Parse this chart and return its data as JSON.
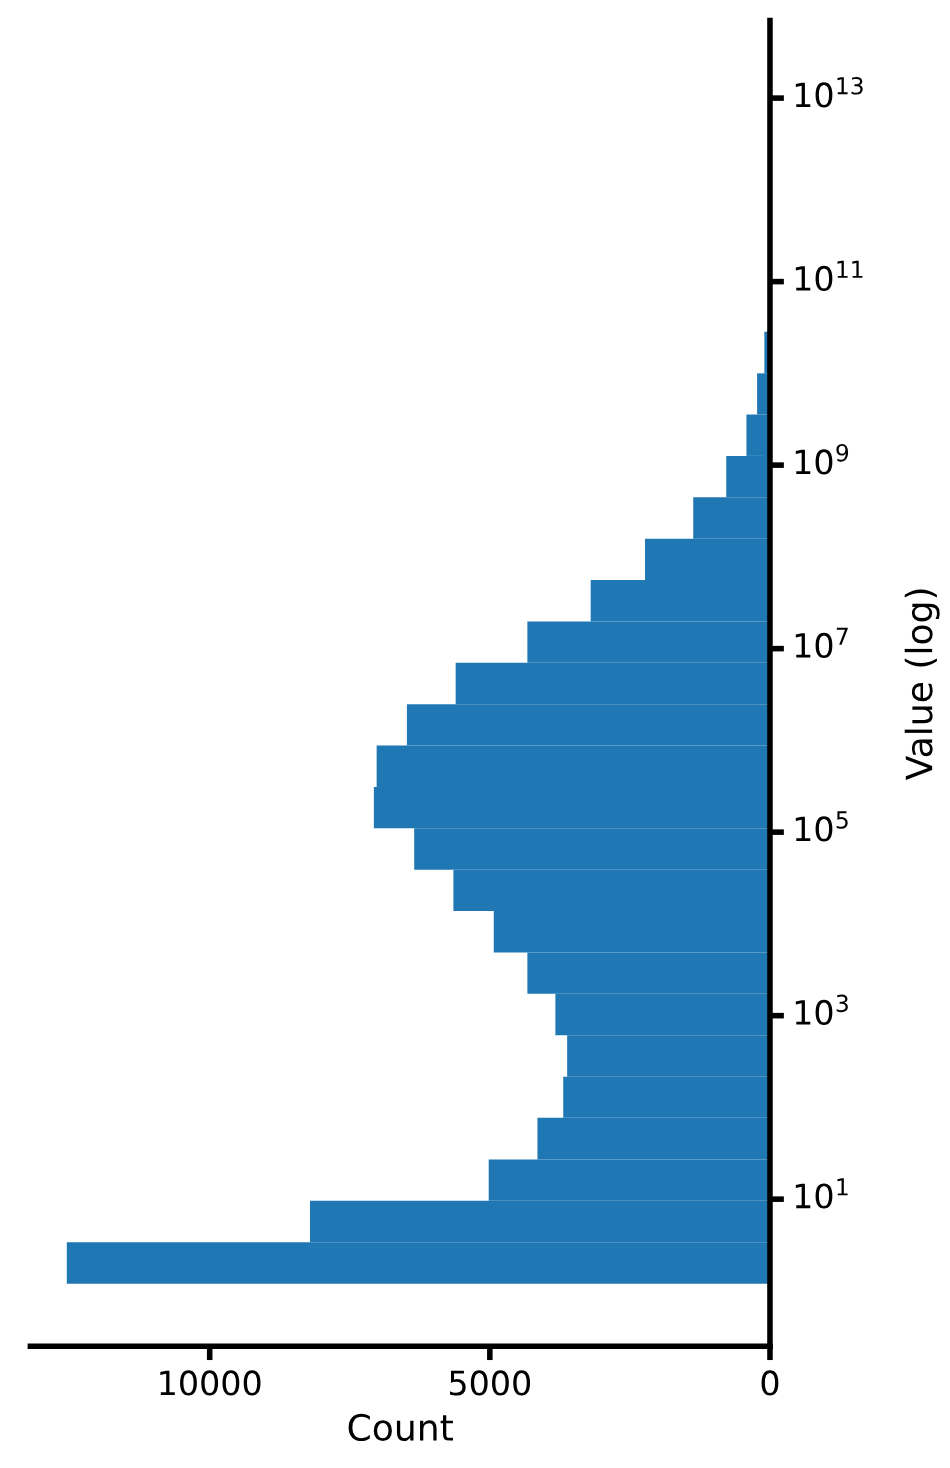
{
  "chart_data": {
    "type": "histogram",
    "orientation": "horizontal",
    "log": "y",
    "xlabel": "Count",
    "ylabel": "Value (log)",
    "bins": [
      1.2,
      3.4,
      9.6,
      27,
      77,
      216,
      611,
      1730,
      4880,
      13800,
      38900,
      110000,
      310000,
      877000,
      2480000,
      7000000,
      19800000,
      55800000,
      158000000,
      446000000,
      1260000000,
      3560000000,
      10000000000,
      28400000000
    ],
    "values": [
      12550,
      8210,
      5020,
      4150,
      3690,
      3620,
      3830,
      4330,
      4930,
      5650,
      6350,
      7070,
      7020,
      6480,
      5610,
      4330,
      3200,
      2230,
      1370,
      780,
      420,
      230,
      100
    ],
    "color": "#1f77b4",
    "xlim": [
      13200,
      0
    ],
    "xticks": [
      10000,
      5000,
      0
    ],
    "ylim": [
      0.25,
      70000000000000
    ],
    "yticks": [
      {
        "value": 10,
        "label": "10$^{1}$"
      },
      {
        "value": 1000,
        "label": "10$^{3}$"
      },
      {
        "value": 100000,
        "label": "10$^{5}$"
      },
      {
        "value": 10000000,
        "label": "10$^{7}$"
      },
      {
        "value": 1000000000,
        "label": "10$^{9}$"
      },
      {
        "value": 100000000000,
        "label": "10$^{11}$"
      },
      {
        "value": 10000000000000,
        "label": "10$^{13}$"
      }
    ],
    "grid": false
  }
}
